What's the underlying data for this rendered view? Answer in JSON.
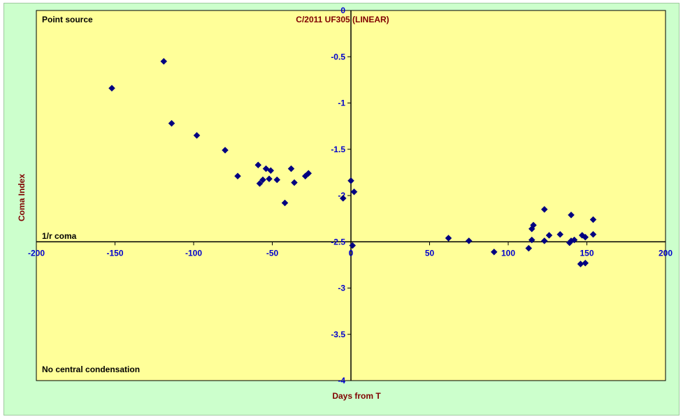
{
  "chart_data": {
    "type": "scatter",
    "title": "C/2011 UF305 (LINEAR)",
    "xlabel": "Days from T",
    "ylabel": "Coma Index",
    "xlim": [
      -200,
      200
    ],
    "ylim": [
      -4,
      0
    ],
    "x_ticks": [
      -200,
      -150,
      -100,
      -50,
      0,
      50,
      100,
      150,
      200
    ],
    "y_ticks": [
      0,
      -0.5,
      -1,
      -1.5,
      -2,
      -2.5,
      -3,
      -3.5,
      -4
    ],
    "x_tick_labels": [
      "-200",
      "-150",
      "-100",
      "-50",
      "0",
      "50",
      "100",
      "150",
      "200"
    ],
    "y_tick_labels": [
      "0",
      "-0.5",
      "-1",
      "-1.5",
      "-2",
      "-2.5",
      "-3",
      "-3.5",
      "-4"
    ],
    "grid": false,
    "annotations": {
      "top": "Point source",
      "middle": "1/r coma",
      "bottom": "No central condensation"
    },
    "marker_color": "#000080",
    "plot_background": "#ffff99",
    "frame_background": "#ccffcc",
    "points": [
      {
        "x": -152,
        "y": -0.84
      },
      {
        "x": -119,
        "y": -0.55
      },
      {
        "x": -114,
        "y": -1.22
      },
      {
        "x": -98,
        "y": -1.35
      },
      {
        "x": -80,
        "y": -1.51
      },
      {
        "x": -72,
        "y": -1.79
      },
      {
        "x": -59,
        "y": -1.67
      },
      {
        "x": -58,
        "y": -1.87
      },
      {
        "x": -56,
        "y": -1.83
      },
      {
        "x": -54,
        "y": -1.71
      },
      {
        "x": -52,
        "y": -1.82
      },
      {
        "x": -51,
        "y": -1.73
      },
      {
        "x": -47,
        "y": -1.83
      },
      {
        "x": -42,
        "y": -2.08
      },
      {
        "x": -38,
        "y": -1.71
      },
      {
        "x": -36,
        "y": -1.86
      },
      {
        "x": -29,
        "y": -1.79
      },
      {
        "x": -27,
        "y": -1.76
      },
      {
        "x": -5,
        "y": -2.03
      },
      {
        "x": 0,
        "y": -1.84
      },
      {
        "x": 1,
        "y": -2.54
      },
      {
        "x": 2,
        "y": -1.96
      },
      {
        "x": 62,
        "y": -2.46
      },
      {
        "x": 75,
        "y": -2.49
      },
      {
        "x": 91,
        "y": -2.61
      },
      {
        "x": 113,
        "y": -2.57
      },
      {
        "x": 115,
        "y": -2.48
      },
      {
        "x": 115,
        "y": -2.36
      },
      {
        "x": 116,
        "y": -2.32
      },
      {
        "x": 123,
        "y": -2.49
      },
      {
        "x": 123,
        "y": -2.15
      },
      {
        "x": 126,
        "y": -2.43
      },
      {
        "x": 133,
        "y": -2.42
      },
      {
        "x": 139,
        "y": -2.51
      },
      {
        "x": 140,
        "y": -2.49
      },
      {
        "x": 140,
        "y": -2.21
      },
      {
        "x": 142,
        "y": -2.48
      },
      {
        "x": 146,
        "y": -2.74
      },
      {
        "x": 147,
        "y": -2.43
      },
      {
        "x": 149,
        "y": -2.45
      },
      {
        "x": 149,
        "y": -2.73
      },
      {
        "x": 154,
        "y": -2.26
      },
      {
        "x": 154,
        "y": -2.42
      }
    ]
  }
}
